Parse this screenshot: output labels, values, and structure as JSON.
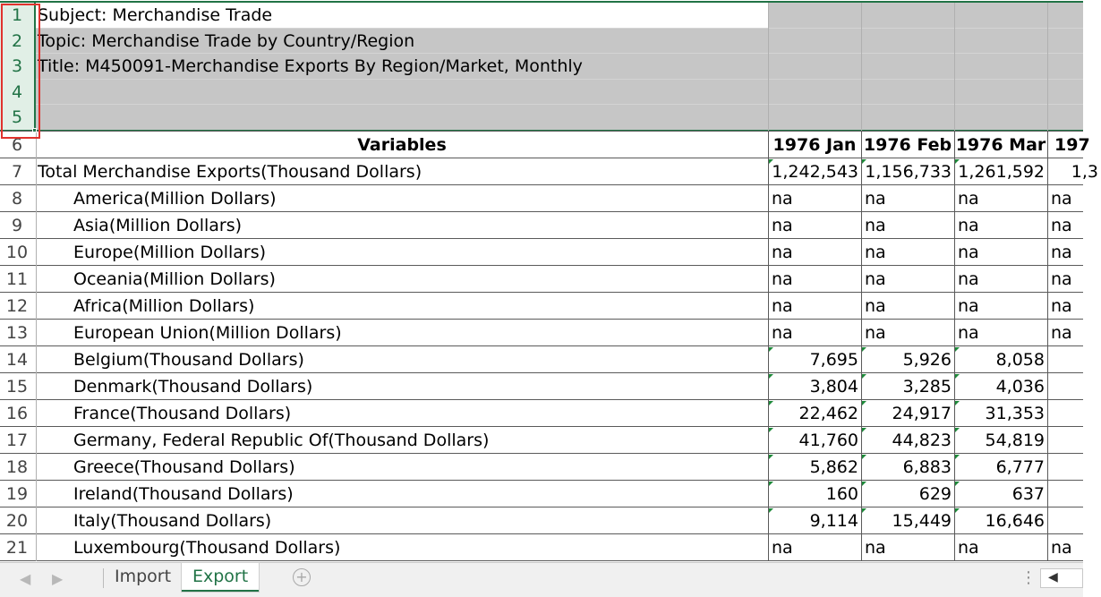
{
  "info_rows": [
    "Subject: Merchandise Trade",
    "Topic: Merchandise Trade by Country/Region",
    "Title: M450091-Merchandise Exports By Region/Market, Monthly",
    "",
    ""
  ],
  "header": {
    "variables": "Variables",
    "months": [
      "1976 Jan",
      "1976 Feb",
      "1976 Mar",
      "197"
    ]
  },
  "row_numbers": [
    "1",
    "2",
    "3",
    "4",
    "5",
    "6",
    "7",
    "8",
    "9",
    "10",
    "11",
    "12",
    "13",
    "14",
    "15",
    "16",
    "17",
    "18",
    "19",
    "20",
    "21"
  ],
  "rows": [
    {
      "label": "Total Merchandise Exports(Thousand Dollars)",
      "indent": false,
      "values": [
        "1,242,543",
        "1,156,733",
        "1,261,592",
        "1,3"
      ],
      "na": false
    },
    {
      "label": "America(Million Dollars)",
      "indent": true,
      "values": [
        "na",
        "na",
        "na",
        "na"
      ],
      "na": true
    },
    {
      "label": "Asia(Million Dollars)",
      "indent": true,
      "values": [
        "na",
        "na",
        "na",
        "na"
      ],
      "na": true
    },
    {
      "label": "Europe(Million Dollars)",
      "indent": true,
      "values": [
        "na",
        "na",
        "na",
        "na"
      ],
      "na": true
    },
    {
      "label": "Oceania(Million Dollars)",
      "indent": true,
      "values": [
        "na",
        "na",
        "na",
        "na"
      ],
      "na": true
    },
    {
      "label": "Africa(Million Dollars)",
      "indent": true,
      "values": [
        "na",
        "na",
        "na",
        "na"
      ],
      "na": true
    },
    {
      "label": "European Union(Million Dollars)",
      "indent": true,
      "values": [
        "na",
        "na",
        "na",
        "na"
      ],
      "na": true
    },
    {
      "label": "Belgium(Thousand Dollars)",
      "indent": true,
      "values": [
        "7,695",
        "5,926",
        "8,058",
        ""
      ],
      "na": false
    },
    {
      "label": "Denmark(Thousand Dollars)",
      "indent": true,
      "values": [
        "3,804",
        "3,285",
        "4,036",
        ""
      ],
      "na": false
    },
    {
      "label": "France(Thousand Dollars)",
      "indent": true,
      "values": [
        "22,462",
        "24,917",
        "31,353",
        ""
      ],
      "na": false
    },
    {
      "label": "Germany, Federal Republic Of(Thousand Dollars)",
      "indent": true,
      "values": [
        "41,760",
        "44,823",
        "54,819",
        ""
      ],
      "na": false
    },
    {
      "label": "Greece(Thousand Dollars)",
      "indent": true,
      "values": [
        "5,862",
        "6,883",
        "6,777",
        ""
      ],
      "na": false
    },
    {
      "label": "Ireland(Thousand Dollars)",
      "indent": true,
      "values": [
        "160",
        "629",
        "637",
        ""
      ],
      "na": false
    },
    {
      "label": "Italy(Thousand Dollars)",
      "indent": true,
      "values": [
        "9,114",
        "15,449",
        "16,646",
        ""
      ],
      "na": false
    },
    {
      "label": "Luxembourg(Thousand Dollars)",
      "indent": true,
      "values": [
        "na",
        "na",
        "na",
        "na"
      ],
      "na": true
    }
  ],
  "tabs": [
    {
      "label": "Import",
      "active": false
    },
    {
      "label": "Export",
      "active": true
    }
  ],
  "icons": {
    "prev_sheet": "chevron-left-icon",
    "next_sheet": "chevron-right-icon",
    "add_sheet": "plus-circle-icon",
    "scroll_left": "caret-left-icon"
  },
  "colors": {
    "accent": "#217346",
    "selection_outline": "#e0322d",
    "header_fill": "#c6c6c6"
  }
}
